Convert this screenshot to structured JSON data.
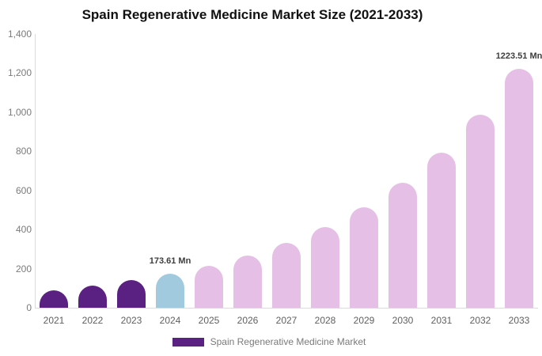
{
  "title": "Spain Regenerative Medicine Market Size (2021-2033)",
  "colors": {
    "historical_bar": "#5b2182",
    "base_year_bar": "#a1cade",
    "forecast_bar": "#e6bfe6",
    "axis_line": "#dbdbdb",
    "y_axis_text": "#7b7b7b",
    "x_axis_text": "#5f5f5f",
    "data_label_text": "#3d3d3d",
    "legend_text": "#7a7a7a",
    "title_text": "#111111",
    "background": "#ffffff"
  },
  "chart_data": {
    "type": "bar",
    "title": "Spain Regenerative Medicine Market Size (2021-2033)",
    "xlabel": "",
    "ylabel": "",
    "unit": "Mn",
    "categories": [
      "2021",
      "2022",
      "2023",
      "2024",
      "2025",
      "2026",
      "2027",
      "2028",
      "2029",
      "2030",
      "2031",
      "2032",
      "2033"
    ],
    "values": [
      90,
      112,
      140,
      173.61,
      216,
      268,
      333,
      414,
      514,
      639,
      793,
      986,
      1223.51
    ],
    "point_colors": [
      "#5b2182",
      "#5b2182",
      "#5b2182",
      "#a1cade",
      "#e6bfe6",
      "#e6bfe6",
      "#e6bfe6",
      "#e6bfe6",
      "#e6bfe6",
      "#e6bfe6",
      "#e6bfe6",
      "#e6bfe6",
      "#e6bfe6"
    ],
    "data_labels": {
      "2024": "173.61 Mn",
      "2033": "1223.51 Mn"
    },
    "ylim": [
      0,
      1400
    ],
    "ytick_step": 200,
    "ytick_labels": [
      "0",
      "200",
      "400",
      "600",
      "800",
      "1,000",
      "1,200",
      "1,400"
    ],
    "grid": false,
    "legend": {
      "position": "bottom",
      "items": [
        {
          "label": "Spain Regenerative Medicine Market",
          "color": "#5b2182"
        }
      ]
    }
  }
}
